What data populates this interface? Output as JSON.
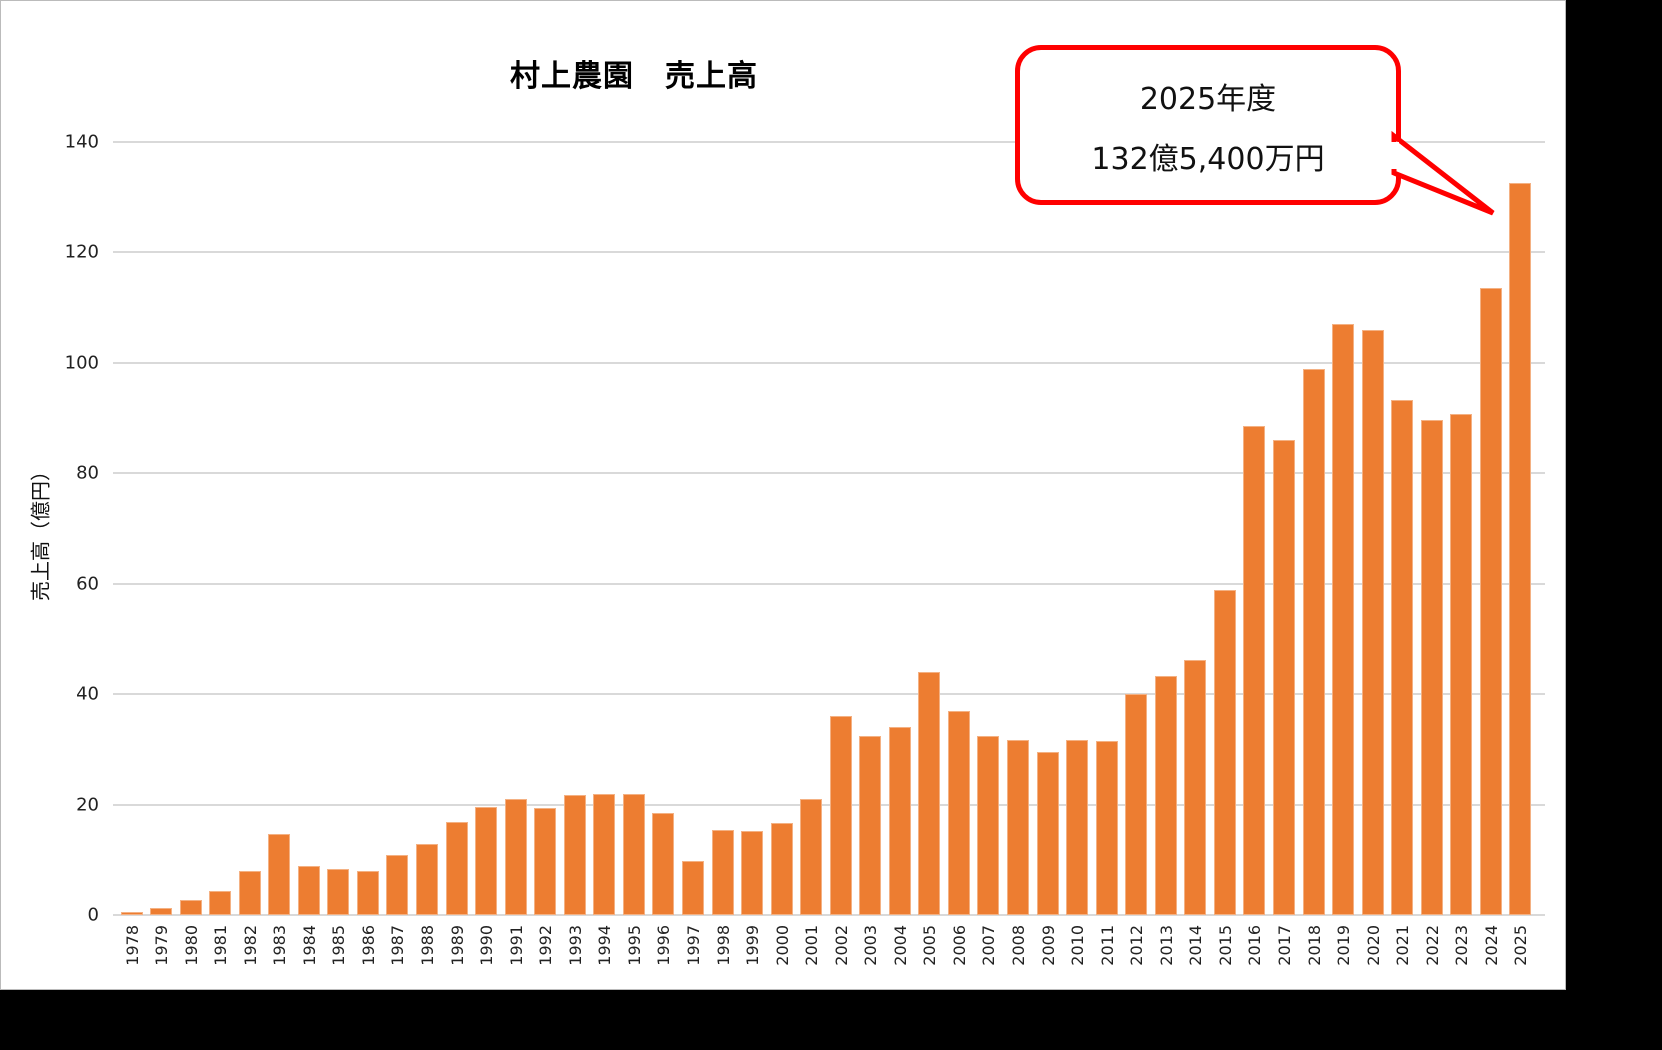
{
  "chart_data": {
    "type": "bar",
    "title": "村上農園　売上高",
    "xlabel": "",
    "ylabel": "売上高（億円）",
    "ylim": [
      0,
      140
    ],
    "yticks": [
      0,
      20,
      40,
      60,
      80,
      100,
      120,
      140
    ],
    "grid": true,
    "legend": "none",
    "bar_color": "#ED7D31",
    "categories": [
      "1978",
      "1979",
      "1980",
      "1981",
      "1982",
      "1983",
      "1984",
      "1985",
      "1986",
      "1987",
      "1988",
      "1989",
      "1990",
      "1991",
      "1992",
      "1993",
      "1994",
      "1995",
      "1996",
      "1997",
      "1998",
      "1999",
      "2000",
      "2001",
      "2002",
      "2003",
      "2004",
      "2005",
      "2006",
      "2007",
      "2008",
      "2009",
      "2010",
      "2011",
      "2012",
      "2013",
      "2014",
      "2015",
      "2016",
      "2017",
      "2018",
      "2019",
      "2020",
      "2021",
      "2022",
      "2023",
      "2024",
      "2025"
    ],
    "values": [
      0.5,
      1.2,
      2.7,
      4.3,
      7.9,
      14.7,
      8.9,
      8.4,
      8.0,
      10.8,
      12.9,
      16.9,
      19.6,
      21.0,
      19.4,
      21.7,
      21.9,
      21.9,
      18.5,
      9.8,
      15.4,
      15.2,
      16.7,
      21.0,
      36.0,
      32.4,
      34.1,
      44.0,
      37.0,
      32.4,
      31.7,
      29.5,
      31.7,
      31.6,
      40.0,
      43.2,
      46.1,
      58.9,
      88.6,
      86.0,
      98.9,
      107.0,
      106.0,
      93.3,
      89.6,
      90.8,
      113.6,
      132.54
    ],
    "annotations": [
      {
        "target": "2025",
        "line1": "2025年度",
        "line2": "132億5,400万円",
        "border_color": "#FF0000"
      }
    ]
  }
}
